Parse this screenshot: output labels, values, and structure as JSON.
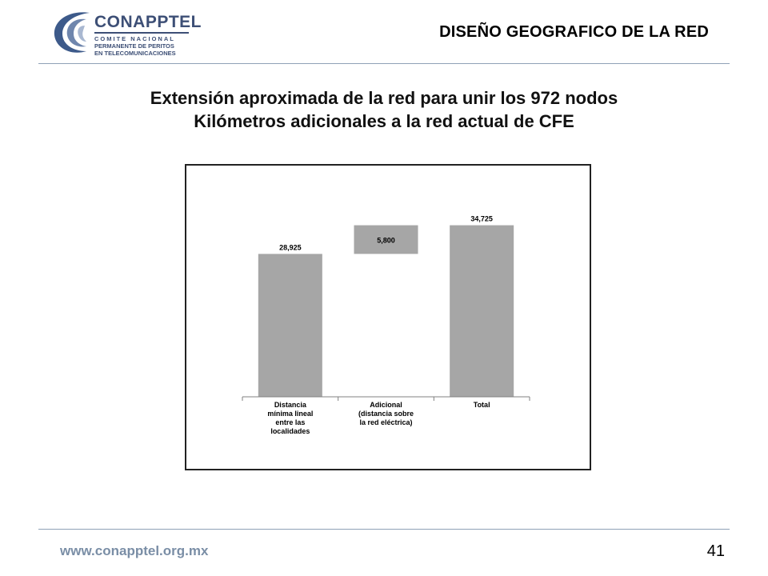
{
  "logo": {
    "name": "CONAPPTEL",
    "line1": "COMITE NACIONAL",
    "line2": "PERMANENTE DE PERITOS",
    "line3": "EN TELECOMUNICACIONES"
  },
  "header": {
    "title": "DISEÑO GEOGRAFICO DE LA RED"
  },
  "slide": {
    "heading_line1": "Extensión aproximada de la red para unir los 972 nodos",
    "heading_line2": "Kilómetros adicionales a la red actual de CFE"
  },
  "chart_data": {
    "type": "bar",
    "subtype": "waterfall",
    "title": "",
    "xlabel": "",
    "ylabel": "",
    "ylim": [
      0,
      40000
    ],
    "grid": false,
    "legend": "none",
    "bar_color": "#a6a6a6",
    "categories": [
      [
        "Distancia",
        "mínima lineal",
        "entre las",
        "localidades"
      ],
      [
        "Adicional",
        "(distancia sobre",
        "la red eléctrica)"
      ],
      [
        "Total"
      ]
    ],
    "values": [
      28925,
      5800,
      34725
    ],
    "bases": [
      0,
      28925,
      0
    ],
    "labels": [
      "28,925",
      "5,800",
      "34,725"
    ]
  },
  "footer": {
    "url": "www.conapptel.org.mx",
    "page": "41"
  }
}
